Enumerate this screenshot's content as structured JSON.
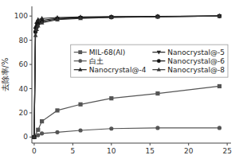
{
  "chart_data": {
    "type": "line",
    "ylabel": "去除率/%",
    "xlim": [
      -0.3,
      25.5
    ],
    "ylim": [
      -5,
      108
    ],
    "xticks": [
      0,
      5,
      10,
      15,
      20,
      25
    ],
    "yticks": [
      0,
      20,
      40,
      60,
      80,
      100
    ],
    "grid": false,
    "legend": "right",
    "series": [
      {
        "name": "MIL-68(Al)",
        "color": "#555555",
        "marker": "square",
        "line_style": "solid",
        "x": [
          0,
          0.5,
          1,
          3,
          6,
          10,
          16,
          24
        ],
        "values": [
          0,
          6,
          13,
          22,
          27,
          32,
          36,
          42
        ]
      },
      {
        "name": "白土",
        "color": "#555555",
        "marker": "circle",
        "line_style": "solid",
        "x": [
          0,
          0.5,
          1,
          3,
          6,
          10,
          16,
          24
        ],
        "values": [
          0,
          1.5,
          3,
          4,
          5.5,
          7,
          7.5,
          7.5
        ]
      },
      {
        "name": "Nanocrystal@-4",
        "color": "#222222",
        "marker": "triangle-up",
        "line_style": "solid",
        "x": [
          0,
          0.17,
          0.33,
          0.5,
          1,
          3,
          6,
          10,
          16,
          24
        ],
        "values": [
          0,
          91,
          95,
          97,
          98,
          98.8,
          99.2,
          99.5,
          99.8,
          100
        ]
      },
      {
        "name": "Nanocrystal@-5",
        "color": "#222222",
        "marker": "triangle-down",
        "line_style": "solid",
        "x": [
          0,
          0.17,
          0.33,
          0.5,
          1,
          3,
          6,
          10,
          16,
          24
        ],
        "values": [
          0,
          89,
          93,
          95,
          96.5,
          98,
          98.8,
          99.2,
          99.6,
          100
        ]
      },
      {
        "name": "Nanocrystal@-6",
        "color": "#111111",
        "marker": "circle",
        "line_style": "solid",
        "x": [
          0,
          0.17,
          0.33,
          0.5,
          1,
          3,
          6,
          10,
          16,
          24
        ],
        "values": [
          0,
          87,
          91,
          93.5,
          95.5,
          97.5,
          98.5,
          99,
          99.5,
          100
        ]
      },
      {
        "name": "Nanocrystal@-8",
        "color": "#333333",
        "marker": "triangle-up",
        "line_style": "solid",
        "x": [
          0,
          0.17,
          0.33,
          0.5,
          1,
          3,
          6,
          10,
          16,
          24
        ],
        "values": [
          0,
          84,
          89,
          92,
          94.5,
          97,
          98,
          98.8,
          99.3,
          100
        ]
      }
    ]
  }
}
